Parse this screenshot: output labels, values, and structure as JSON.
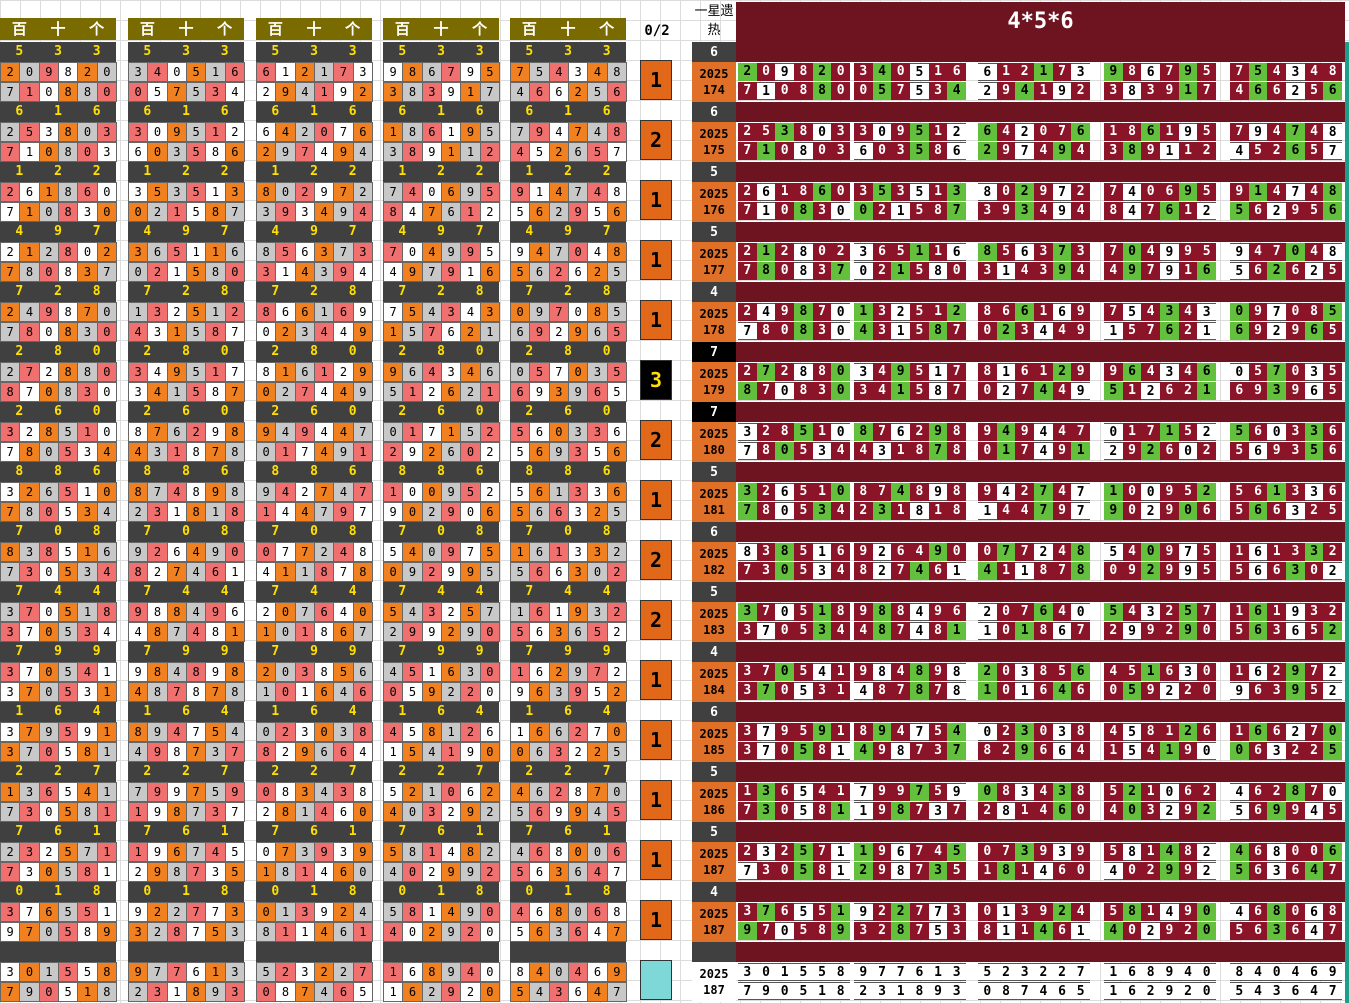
{
  "headers": {
    "cols": [
      "百",
      "十",
      "个"
    ],
    "col02": "0/2",
    "star": "一星遗热",
    "title": "4*5*6"
  },
  "rows": [
    {
      "h": "533",
      "a": "209820",
      "b": "710880",
      "c": [
        "340516",
        "057534"
      ],
      "d": [
        "612173",
        "294192"
      ],
      "e": [
        "986795",
        "383917"
      ],
      "f": [
        "754348",
        "466256"
      ],
      "cnt": "1",
      "hot": "6",
      "yr": "2025",
      "iss": "174"
    },
    {
      "h": "616",
      "a": "253803",
      "b": "710803",
      "c": [
        "309512",
        "603586"
      ],
      "d": [
        "642076",
        "297494"
      ],
      "e": [
        "186195",
        "389112"
      ],
      "f": [
        "794748",
        "452657"
      ],
      "cnt": "2",
      "hot": "6",
      "yr": "2025",
      "iss": "175"
    },
    {
      "h": "122",
      "a": "261860",
      "b": "710830",
      "c": [
        "353513",
        "021587"
      ],
      "d": [
        "802972",
        "393494"
      ],
      "e": [
        "740695",
        "847612"
      ],
      "f": [
        "914748",
        "562956"
      ],
      "cnt": "1",
      "hot": "5",
      "yr": "2025",
      "iss": "176"
    },
    {
      "h": "497",
      "a": "212802",
      "b": "780837",
      "c": [
        "365116",
        "021580"
      ],
      "d": [
        "856373",
        "314394"
      ],
      "e": [
        "704995",
        "497916"
      ],
      "f": [
        "947048",
        "562625"
      ],
      "cnt": "1",
      "hot": "5",
      "yr": "2025",
      "iss": "177"
    },
    {
      "h": "728",
      "a": "249870",
      "b": "780830",
      "c": [
        "132512",
        "431587"
      ],
      "d": [
        "866169",
        "023449"
      ],
      "e": [
        "754343",
        "157621"
      ],
      "f": [
        "097085",
        "692965"
      ],
      "cnt": "1",
      "hot": "4",
      "yr": "2025",
      "iss": "178"
    },
    {
      "h": "280",
      "a": "272880",
      "b": "870830",
      "c": [
        "349517",
        "341587"
      ],
      "d": [
        "816129",
        "027449"
      ],
      "e": [
        "964346",
        "512621"
      ],
      "f": [
        "057035",
        "693965"
      ],
      "cnt": "3",
      "hot": "7",
      "yr": "2025",
      "iss": "179"
    },
    {
      "h": "260",
      "a": "328510",
      "b": "780534",
      "c": [
        "876298",
        "431878"
      ],
      "d": [
        "949447",
        "017491"
      ],
      "e": [
        "017152",
        "292602"
      ],
      "f": [
        "560336",
        "569356"
      ],
      "cnt": "2",
      "hot": "7",
      "yr": "2025",
      "iss": "180"
    },
    {
      "h": "886",
      "a": "326510",
      "b": "780534",
      "c": [
        "874898",
        "231818"
      ],
      "d": [
        "942747",
        "144797"
      ],
      "e": [
        "100952",
        "902906"
      ],
      "f": [
        "561336",
        "566325"
      ],
      "cnt": "1",
      "hot": "5",
      "yr": "2025",
      "iss": "181"
    },
    {
      "h": "708",
      "a": "838516",
      "b": "730534",
      "c": [
        "926490",
        "827461"
      ],
      "d": [
        "077248",
        "411878"
      ],
      "e": [
        "540975",
        "092995"
      ],
      "f": [
        "161332",
        "566302"
      ],
      "cnt": "2",
      "hot": "6",
      "yr": "2025",
      "iss": "182"
    },
    {
      "h": "744",
      "a": "370518",
      "b": "370534",
      "c": [
        "988496",
        "487481"
      ],
      "d": [
        "207640",
        "101867"
      ],
      "e": [
        "543257",
        "299290"
      ],
      "f": [
        "161932",
        "563652"
      ],
      "cnt": "2",
      "hot": "5",
      "yr": "2025",
      "iss": "183"
    },
    {
      "h": "799",
      "a": "370541",
      "b": "370531",
      "c": [
        "984898",
        "487878"
      ],
      "d": [
        "203856",
        "101646"
      ],
      "e": [
        "451630",
        "059220"
      ],
      "f": [
        "162972",
        "963952"
      ],
      "cnt": "1",
      "hot": "4",
      "yr": "2025",
      "iss": "184"
    },
    {
      "h": "164",
      "a": "379591",
      "b": "370581",
      "c": [
        "894754",
        "498737"
      ],
      "d": [
        "023038",
        "829664"
      ],
      "e": [
        "458126",
        "154190"
      ],
      "f": [
        "166270",
        "063225"
      ],
      "cnt": "1",
      "hot": "6",
      "yr": "2025",
      "iss": "185"
    },
    {
      "h": "227",
      "a": "136541",
      "b": "730581",
      "c": [
        "799759",
        "198737"
      ],
      "d": [
        "083438",
        "281460"
      ],
      "e": [
        "521062",
        "403292"
      ],
      "f": [
        "462870",
        "569945"
      ],
      "cnt": "1",
      "hot": "5",
      "yr": "2025",
      "iss": "186"
    },
    {
      "h": "761",
      "a": "232571",
      "b": "730581",
      "c": [
        "196745",
        "298735"
      ],
      "d": [
        "073939",
        "181460"
      ],
      "e": [
        "581482",
        "402992"
      ],
      "f": [
        "468006",
        "563647"
      ],
      "cnt": "1",
      "hot": "5",
      "yr": "2025",
      "iss": "187"
    },
    {
      "h": "018",
      "a": "376551",
      "b": "970589",
      "c": [
        "922773",
        "328753"
      ],
      "d": [
        "013924",
        "811461"
      ],
      "e": [
        "581490",
        "402920"
      ],
      "f": [
        "468068",
        "563647"
      ],
      "cnt": "1",
      "hot": "4",
      "yr": "2025",
      "iss": "187"
    },
    {
      "h": "",
      "a": "301558",
      "b": "790518",
      "c": [
        "977613",
        "231893"
      ],
      "d": [
        "523227",
        "087465"
      ],
      "e": [
        "168940",
        "162920"
      ],
      "f": [
        "840469",
        "543647"
      ],
      "cnt": "",
      "hot": "",
      "yr": "2025",
      "iss": "187"
    }
  ],
  "colors": {
    "orange": "#f08020",
    "gray": "#c8c8c8",
    "red": "#f07070",
    "maroon": "#8b1428",
    "green": "#62c03c",
    "teal": "#7fd8d8"
  }
}
